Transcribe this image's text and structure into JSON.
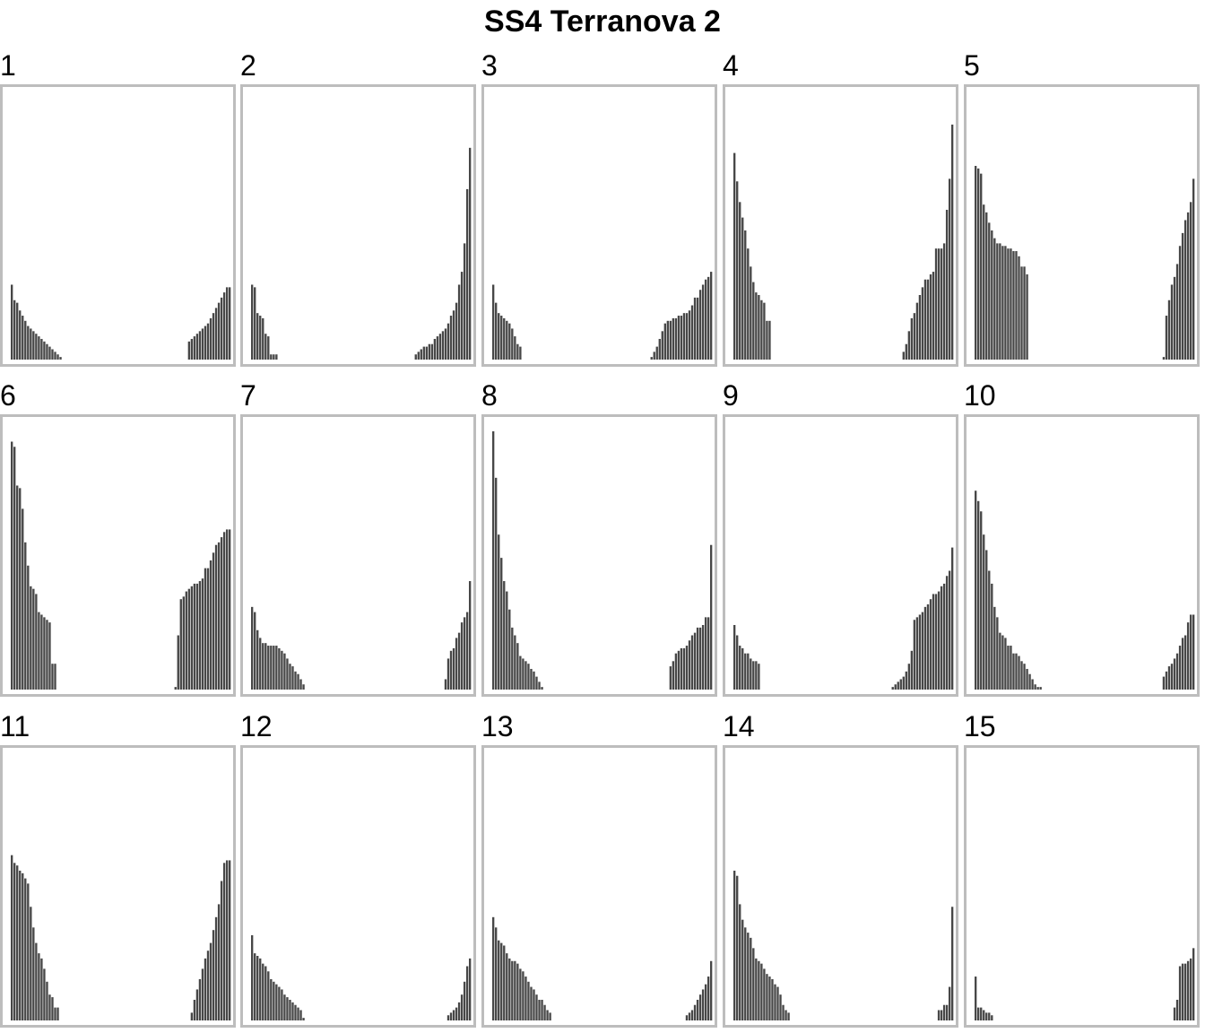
{
  "title": "SS4 Terranova 2",
  "colors": {
    "bar": "#474747",
    "frame": "#bdbdbd",
    "background": "#ffffff"
  },
  "chart_data": {
    "type": "bar",
    "title": "SS4 Terranova 2",
    "xlabel": "",
    "ylabel": "",
    "ylim": [
      0,
      1
    ],
    "grid": false,
    "legend": "none",
    "panels": [
      {
        "label": "1",
        "left": [
          0.29,
          0.23,
          0.22,
          0.19,
          0.17,
          0.15,
          0.13,
          0.12,
          0.11,
          0.1,
          0.09,
          0.08,
          0.07,
          0.06,
          0.05,
          0.04,
          0.03,
          0.02,
          0.01
        ],
        "right": [
          0.07,
          0.08,
          0.09,
          0.1,
          0.11,
          0.12,
          0.13,
          0.14,
          0.16,
          0.18,
          0.2,
          0.22,
          0.24,
          0.26,
          0.28,
          0.28
        ]
      },
      {
        "label": "2",
        "left": [
          0.29,
          0.28,
          0.18,
          0.17,
          0.16,
          0.1,
          0.09,
          0.02,
          0.02,
          0.02
        ],
        "right": [
          0.02,
          0.03,
          0.04,
          0.05,
          0.05,
          0.06,
          0.06,
          0.08,
          0.09,
          0.1,
          0.11,
          0.12,
          0.14,
          0.17,
          0.19,
          0.22,
          0.29,
          0.34,
          0.45,
          0.66,
          0.82
        ]
      },
      {
        "label": "3",
        "left": [
          0.29,
          0.22,
          0.18,
          0.17,
          0.16,
          0.15,
          0.14,
          0.12,
          0.09,
          0.06,
          0.05
        ],
        "right": [
          0.01,
          0.03,
          0.05,
          0.08,
          0.11,
          0.14,
          0.15,
          0.15,
          0.16,
          0.16,
          0.17,
          0.17,
          0.18,
          0.18,
          0.19,
          0.21,
          0.24,
          0.24,
          0.27,
          0.29,
          0.31,
          0.32,
          0.34
        ]
      },
      {
        "label": "4",
        "left": [
          0.8,
          0.69,
          0.61,
          0.55,
          0.5,
          0.43,
          0.36,
          0.3,
          0.26,
          0.25,
          0.23,
          0.22,
          0.15,
          0.15
        ],
        "right": [
          0.03,
          0.06,
          0.11,
          0.16,
          0.18,
          0.22,
          0.25,
          0.28,
          0.31,
          0.31,
          0.33,
          0.34,
          0.43,
          0.43,
          0.43,
          0.45,
          0.58,
          0.7,
          0.91
        ]
      },
      {
        "label": "5",
        "left": [
          0.75,
          0.74,
          0.72,
          0.6,
          0.57,
          0.53,
          0.5,
          0.47,
          0.45,
          0.45,
          0.44,
          0.44,
          0.43,
          0.43,
          0.42,
          0.42,
          0.4,
          0.36,
          0.36,
          0.33
        ],
        "right": [
          0.01,
          0.17,
          0.23,
          0.29,
          0.32,
          0.37,
          0.44,
          0.49,
          0.54,
          0.57,
          0.61,
          0.7
        ]
      },
      {
        "label": "6",
        "left": [
          0.96,
          0.94,
          0.79,
          0.78,
          0.7,
          0.57,
          0.48,
          0.4,
          0.39,
          0.37,
          0.3,
          0.29,
          0.28,
          0.27,
          0.26,
          0.1,
          0.1
        ],
        "right": [
          0.01,
          0.21,
          0.35,
          0.36,
          0.38,
          0.39,
          0.4,
          0.41,
          0.41,
          0.42,
          0.43,
          0.47,
          0.47,
          0.5,
          0.53,
          0.56,
          0.57,
          0.59,
          0.61,
          0.62,
          0.62
        ]
      },
      {
        "label": "7",
        "left": [
          0.32,
          0.3,
          0.23,
          0.2,
          0.18,
          0.18,
          0.17,
          0.17,
          0.17,
          0.17,
          0.16,
          0.15,
          0.14,
          0.12,
          0.1,
          0.09,
          0.07,
          0.06,
          0.04,
          0.02
        ],
        "right": [
          0.04,
          0.12,
          0.15,
          0.16,
          0.2,
          0.22,
          0.26,
          0.28,
          0.3,
          0.42
        ]
      },
      {
        "label": "8",
        "left": [
          1.0,
          0.82,
          0.6,
          0.51,
          0.42,
          0.38,
          0.31,
          0.24,
          0.21,
          0.18,
          0.13,
          0.12,
          0.11,
          0.1,
          0.08,
          0.07,
          0.05,
          0.03,
          0.01
        ],
        "right": [
          0.09,
          0.11,
          0.14,
          0.15,
          0.16,
          0.16,
          0.17,
          0.19,
          0.21,
          0.22,
          0.24,
          0.24,
          0.25,
          0.28,
          0.28,
          0.56
        ]
      },
      {
        "label": "9",
        "left": [
          0.25,
          0.21,
          0.17,
          0.16,
          0.14,
          0.14,
          0.12,
          0.11,
          0.11,
          0.1
        ],
        "right": [
          0.01,
          0.02,
          0.03,
          0.04,
          0.05,
          0.07,
          0.1,
          0.15,
          0.27,
          0.28,
          0.29,
          0.3,
          0.32,
          0.33,
          0.35,
          0.37,
          0.37,
          0.38,
          0.4,
          0.41,
          0.44,
          0.46,
          0.55
        ]
      },
      {
        "label": "10",
        "left": [
          0.77,
          0.73,
          0.69,
          0.6,
          0.54,
          0.46,
          0.41,
          0.32,
          0.28,
          0.22,
          0.21,
          0.2,
          0.17,
          0.17,
          0.14,
          0.14,
          0.13,
          0.11,
          0.1,
          0.08,
          0.06,
          0.04,
          0.02,
          0.01,
          0.01
        ],
        "right": [
          0.05,
          0.07,
          0.09,
          0.1,
          0.12,
          0.14,
          0.17,
          0.2,
          0.21,
          0.26,
          0.29,
          0.29
        ]
      },
      {
        "label": "11",
        "left": [
          0.64,
          0.61,
          0.6,
          0.58,
          0.57,
          0.55,
          0.53,
          0.44,
          0.36,
          0.3,
          0.26,
          0.24,
          0.2,
          0.15,
          0.1,
          0.09,
          0.05,
          0.05
        ],
        "right": [
          0.03,
          0.08,
          0.12,
          0.16,
          0.2,
          0.24,
          0.27,
          0.3,
          0.35,
          0.4,
          0.45,
          0.54,
          0.61,
          0.62,
          0.62
        ]
      },
      {
        "label": "12",
        "left": [
          0.33,
          0.26,
          0.25,
          0.24,
          0.22,
          0.21,
          0.19,
          0.16,
          0.15,
          0.14,
          0.13,
          0.12,
          0.1,
          0.09,
          0.08,
          0.07,
          0.06,
          0.05,
          0.04,
          0.01
        ],
        "right": [
          0.02,
          0.03,
          0.04,
          0.05,
          0.07,
          0.1,
          0.15,
          0.21,
          0.24
        ]
      },
      {
        "label": "13",
        "left": [
          0.4,
          0.36,
          0.31,
          0.3,
          0.29,
          0.26,
          0.24,
          0.23,
          0.23,
          0.22,
          0.2,
          0.19,
          0.17,
          0.15,
          0.13,
          0.12,
          0.1,
          0.08,
          0.08,
          0.06,
          0.04,
          0.03
        ],
        "right": [
          0.02,
          0.03,
          0.04,
          0.06,
          0.08,
          0.1,
          0.12,
          0.14,
          0.17,
          0.23
        ]
      },
      {
        "label": "14",
        "left": [
          0.58,
          0.56,
          0.45,
          0.39,
          0.36,
          0.34,
          0.32,
          0.28,
          0.24,
          0.23,
          0.22,
          0.2,
          0.18,
          0.17,
          0.16,
          0.14,
          0.13,
          0.1,
          0.06,
          0.04,
          0.03
        ],
        "right": [
          0.04,
          0.04,
          0.06,
          0.06,
          0.13,
          0.44
        ]
      },
      {
        "label": "15",
        "left": [
          0.17,
          0.05,
          0.05,
          0.04,
          0.03,
          0.03,
          0.02
        ],
        "right": [
          0.05,
          0.08,
          0.21,
          0.22,
          0.22,
          0.23,
          0.24,
          0.28
        ]
      }
    ]
  }
}
